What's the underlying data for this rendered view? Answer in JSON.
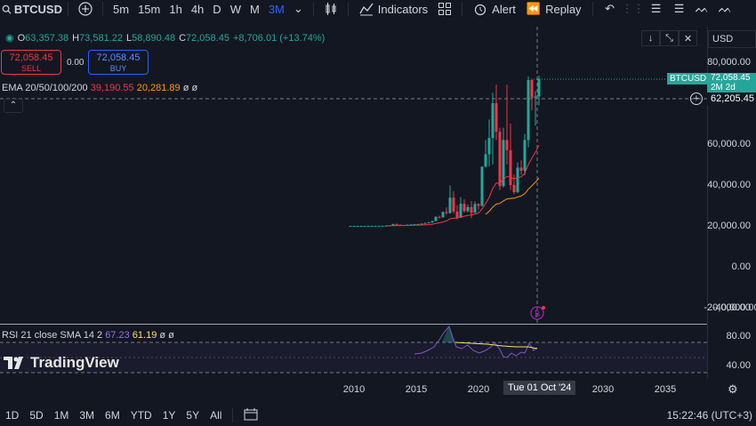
{
  "symbol": "BTCUSD",
  "intervals": [
    "5m",
    "15m",
    "1h",
    "4h",
    "D",
    "W",
    "M",
    "3M"
  ],
  "active_interval": "3M",
  "toolbar": {
    "indicators": "Indicators",
    "alert": "Alert",
    "replay": "Replay"
  },
  "ohlc": {
    "o_label": "O",
    "o": "63,357.38",
    "h_label": "H",
    "h": "73,581.22",
    "l_label": "L",
    "l": "58,890.48",
    "c_label": "C",
    "c": "72,058.45",
    "change": "+8,706.01 (+13.74%)"
  },
  "trade": {
    "sell_price": "72,058.45",
    "sell_label": "SELL",
    "spread": "0.00",
    "buy_price": "72,058.45",
    "buy_label": "BUY"
  },
  "ema": {
    "label": "EMA 20/50/100/200",
    "v1": "39,190.55",
    "v2": "20,281.89",
    "v3": "ø",
    "v4": "ø"
  },
  "currency": "USD",
  "price_axis": [
    "80,000.00",
    "60,000.00",
    "40,000.00",
    "20,000.00",
    "0.00",
    "-20,000.00",
    "-40,000.00"
  ],
  "last_price": {
    "symbol": "BTCUSD",
    "value": "72,058.45",
    "countdown": "2M 2d"
  },
  "crosshair_price": "62,205.45",
  "rsi": {
    "label": "RSI 21 close SMA 14 2",
    "v1": "67.23",
    "v2": "61.19",
    "v3": "ø",
    "v4": "ø",
    "axis": [
      "80.00",
      "40.00"
    ]
  },
  "logo_text": "TradingView",
  "time_axis": [
    "2010",
    "2015",
    "2020",
    "2030",
    "2035"
  ],
  "crosshair_time": "Tue 01 Oct '24",
  "ranges": [
    "1D",
    "5D",
    "1M",
    "3M",
    "6M",
    "YTD",
    "1Y",
    "5Y",
    "All"
  ],
  "clock": "15:22:46 (UTC+3)",
  "colors": {
    "up": "#26a69a",
    "down": "#f23645",
    "ema1": "#f23645",
    "ema2": "#ff9800",
    "rsi": "#7e57c2",
    "rsi_sma": "#f7e358",
    "accent": "#2962ff"
  }
}
